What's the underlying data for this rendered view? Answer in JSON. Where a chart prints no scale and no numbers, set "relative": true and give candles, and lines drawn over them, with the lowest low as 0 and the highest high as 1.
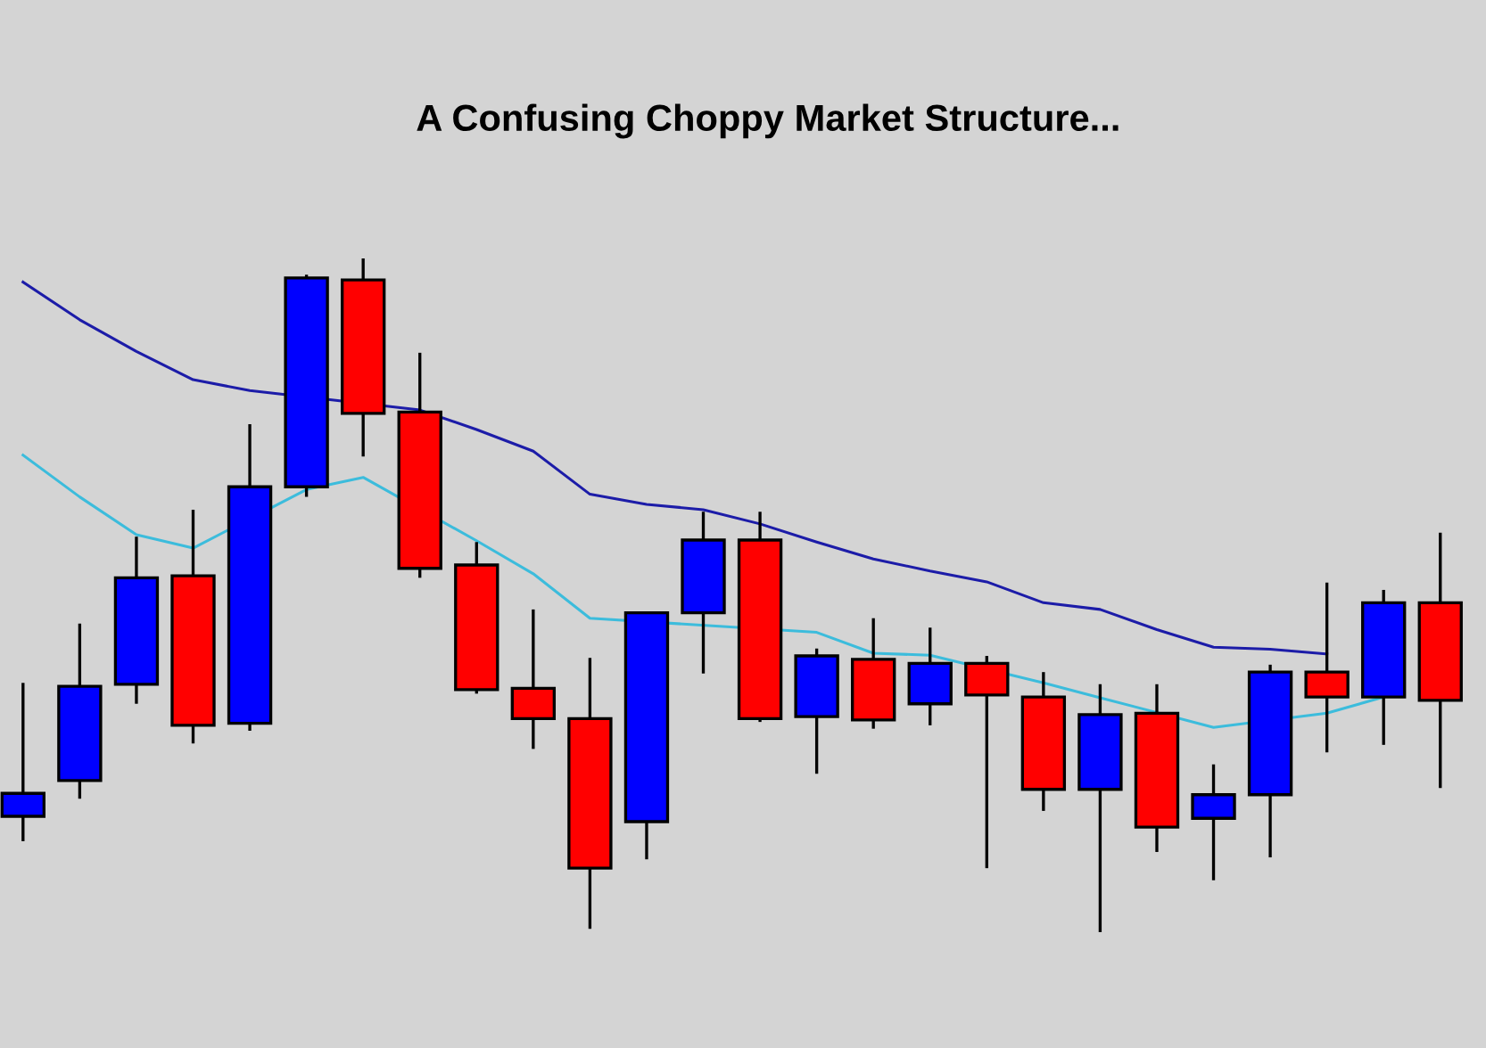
{
  "chart_data": {
    "type": "candlestick",
    "title": "A Confusing Choppy Market Structure...",
    "relative": true,
    "categories": [
      null,
      null,
      null,
      null,
      null,
      null,
      null,
      null,
      null,
      null,
      null,
      null,
      null,
      null,
      null,
      null,
      null,
      null,
      null,
      null,
      null,
      null,
      null,
      null,
      null,
      null
    ],
    "series": [
      {
        "colors": [
          "#0000ff",
          "#0000ff",
          "#0000ff",
          "#ff0000",
          "#0000ff",
          "#0000ff",
          "#ff0000",
          "#ff0000",
          "#ff0000",
          "#ff0000",
          "#ff0000",
          "#0000ff",
          "#0000ff",
          "#ff0000",
          "#0000ff",
          "#ff0000",
          "#0000ff",
          "#ff0000",
          "#ff0000",
          "#0000ff",
          "#ff0000",
          "#0000ff",
          "#0000ff",
          "#ff0000",
          "#0000ff",
          "#ff0000"
        ],
        "ohlc": [
          [
            0.172,
            0.37,
            0.135,
            0.206
          ],
          [
            0.225,
            0.458,
            0.198,
            0.365
          ],
          [
            0.368,
            0.587,
            0.339,
            0.526
          ],
          [
            0.529,
            0.627,
            0.28,
            0.307
          ],
          [
            0.31,
            0.754,
            0.299,
            0.661
          ],
          [
            0.661,
            0.976,
            0.646,
            0.971
          ],
          [
            0.968,
            1.0,
            0.706,
            0.77
          ],
          [
            0.772,
            0.86,
            0.526,
            0.54
          ],
          [
            0.545,
            0.579,
            0.354,
            0.36
          ],
          [
            0.362,
            0.479,
            0.272,
            0.317
          ],
          [
            0.317,
            0.407,
            0.005,
            0.095
          ],
          [
            0.164,
            0.474,
            0.108,
            0.474
          ],
          [
            0.474,
            0.624,
            0.384,
            0.582
          ],
          [
            0.582,
            0.624,
            0.312,
            0.317
          ],
          [
            0.32,
            0.421,
            0.235,
            0.41
          ],
          [
            0.405,
            0.466,
            0.302,
            0.315
          ],
          [
            0.339,
            0.452,
            0.307,
            0.399
          ],
          [
            0.399,
            0.41,
            0.095,
            0.352
          ],
          [
            0.349,
            0.386,
            0.18,
            0.212
          ],
          [
            0.212,
            0.368,
            0.0,
            0.323
          ],
          [
            0.325,
            0.368,
            0.119,
            0.156
          ],
          [
            0.169,
            0.249,
            0.077,
            0.204
          ],
          [
            0.204,
            0.397,
            0.111,
            0.386
          ],
          [
            0.386,
            0.519,
            0.267,
            0.349
          ],
          [
            0.349,
            0.508,
            0.278,
            0.489
          ],
          [
            0.489,
            0.593,
            0.214,
            0.344
          ]
        ]
      },
      {
        "type": "line",
        "color": "#1c1ca8",
        "values": [
          0.965,
          0.909,
          0.862,
          0.82,
          0.804,
          null,
          null,
          0.775,
          0.746,
          0.714,
          0.65,
          0.635,
          0.627,
          0.606,
          0.579,
          0.554,
          0.536,
          0.52,
          0.489,
          0.479,
          0.449,
          0.423,
          0.42,
          0.413,
          null,
          null
        ]
      },
      {
        "type": "line",
        "color": "#3cbcdc",
        "values": [
          0.708,
          0.646,
          0.59,
          0.57,
          null,
          0.657,
          0.675,
          null,
          0.581,
          0.532,
          0.466,
          null,
          null,
          null,
          0.445,
          0.414,
          0.411,
          null,
          0.37,
          0.348,
          null,
          0.304,
          null,
          0.325,
          0.349,
          null
        ]
      }
    ]
  }
}
